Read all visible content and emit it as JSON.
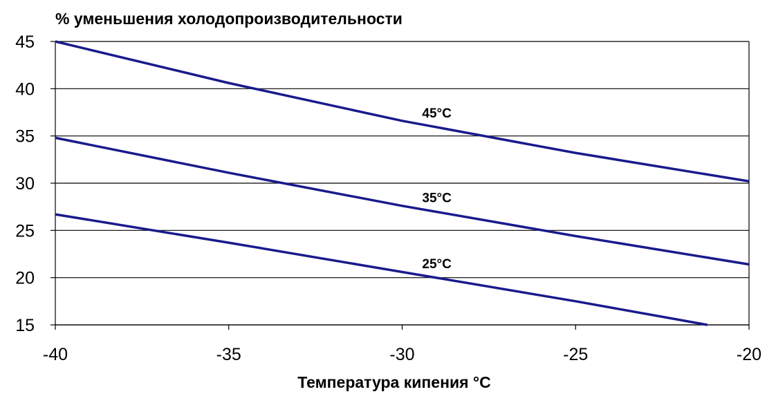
{
  "chart_data": {
    "type": "line",
    "ylabel": "% уменьшения холодопроизводительности",
    "xlabel": "Температура кипения  °C",
    "xlim": [
      -40,
      -20
    ],
    "ylim": [
      15,
      45
    ],
    "xticks": [
      "-40",
      "-35",
      "-30",
      "-25",
      "-20"
    ],
    "yticks": [
      "15",
      "20",
      "25",
      "30",
      "35",
      "40",
      "45"
    ],
    "grid": "horizontal",
    "series_color": "#1a1a8c",
    "series": [
      {
        "name": "45°C",
        "x": [
          -40,
          -35,
          -30,
          -25,
          -20
        ],
        "y": [
          45.0,
          40.6,
          36.6,
          33.2,
          30.2
        ]
      },
      {
        "name": "35°C",
        "x": [
          -40,
          -35,
          -30,
          -25,
          -20
        ],
        "y": [
          34.8,
          31.1,
          27.6,
          24.4,
          21.4
        ]
      },
      {
        "name": "25°C",
        "x": [
          -40,
          -35,
          -30,
          -25,
          -21.2
        ],
        "y": [
          26.7,
          23.7,
          20.6,
          17.5,
          15.0
        ]
      }
    ]
  }
}
